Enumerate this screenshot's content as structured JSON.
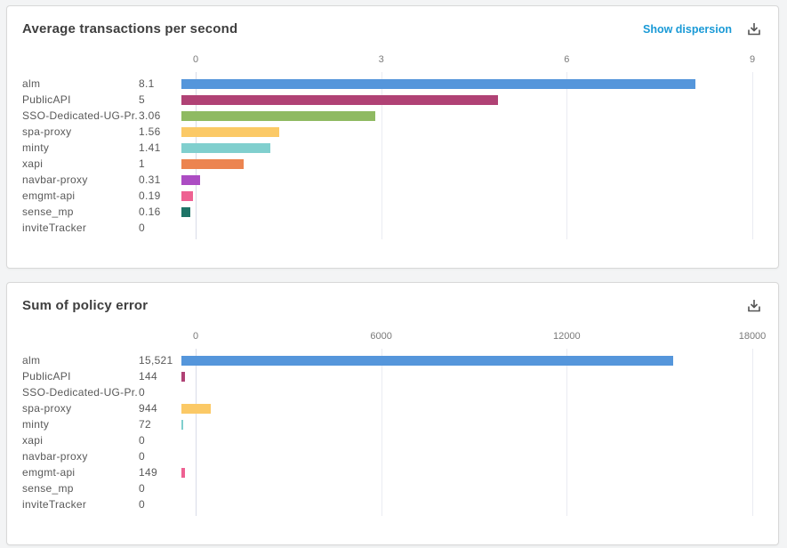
{
  "colors": {
    "link": "#1A9AD6",
    "title_text": "#3E3E3E",
    "label_text": "#595959",
    "axis_text": "#7A7A7A",
    "bar_palette": [
      "#5596DB",
      "#B04275",
      "#8FBA62",
      "#FBC966",
      "#80CFCE",
      "#EC8450",
      "#AC4CC3",
      "#EE6192",
      "#1E7467"
    ]
  },
  "charts": [
    {
      "title": "Average transactions per second",
      "link_label": "Show dispersion",
      "download_icon": "download-icon",
      "axis_max": 9,
      "axis_ticks": [
        "0",
        "3",
        "6",
        "9"
      ],
      "rows": [
        {
          "label": "alm",
          "value": "8.1",
          "num": 8.1,
          "color": "#5596DB"
        },
        {
          "label": "PublicAPI",
          "value": "5",
          "num": 5,
          "color": "#B04275"
        },
        {
          "label": "SSO-Dedicated-UG-Pr...",
          "value": "3.06",
          "num": 3.06,
          "color": "#8FBA62"
        },
        {
          "label": "spa-proxy",
          "value": "1.56",
          "num": 1.56,
          "color": "#FBC966"
        },
        {
          "label": "minty",
          "value": "1.41",
          "num": 1.41,
          "color": "#80CFCE"
        },
        {
          "label": "xapi",
          "value": "1",
          "num": 1,
          "color": "#EC8450"
        },
        {
          "label": "navbar-proxy",
          "value": "0.31",
          "num": 0.31,
          "color": "#AC4CC3"
        },
        {
          "label": "emgmt-api",
          "value": "0.19",
          "num": 0.19,
          "color": "#EE6192"
        },
        {
          "label": "sense_mp",
          "value": "0.16",
          "num": 0.16,
          "color": "#1E7467"
        },
        {
          "label": "inviteTracker",
          "value": "0",
          "num": 0,
          "color": "#5596DB"
        }
      ]
    },
    {
      "title": "Sum of policy error",
      "download_icon": "download-icon",
      "axis_max": 18000,
      "axis_ticks": [
        "0",
        "6000",
        "12000",
        "18000"
      ],
      "rows": [
        {
          "label": "alm",
          "value": "15,521",
          "num": 15521,
          "color": "#5596DB"
        },
        {
          "label": "PublicAPI",
          "value": "144",
          "num": 144,
          "color": "#B04275"
        },
        {
          "label": "SSO-Dedicated-UG-Pr...",
          "value": "0",
          "num": 0,
          "color": "#8FBA62"
        },
        {
          "label": "spa-proxy",
          "value": "944",
          "num": 944,
          "color": "#FBC966"
        },
        {
          "label": "minty",
          "value": "72",
          "num": 72,
          "color": "#80CFCE"
        },
        {
          "label": "xapi",
          "value": "0",
          "num": 0,
          "color": "#EC8450"
        },
        {
          "label": "navbar-proxy",
          "value": "0",
          "num": 0,
          "color": "#AC4CC3"
        },
        {
          "label": "emgmt-api",
          "value": "149",
          "num": 149,
          "color": "#EE6192"
        },
        {
          "label": "sense_mp",
          "value": "0",
          "num": 0,
          "color": "#1E7467"
        },
        {
          "label": "inviteTracker",
          "value": "0",
          "num": 0,
          "color": "#5596DB"
        }
      ]
    }
  ],
  "chart_data": [
    {
      "type": "bar",
      "orientation": "horizontal",
      "title": "Average transactions per second",
      "categories": [
        "alm",
        "PublicAPI",
        "SSO-Dedicated-UG-Pr...",
        "spa-proxy",
        "minty",
        "xapi",
        "navbar-proxy",
        "emgmt-api",
        "sense_mp",
        "inviteTracker"
      ],
      "values": [
        8.1,
        5,
        3.06,
        1.56,
        1.41,
        1,
        0.31,
        0.19,
        0.16,
        0
      ],
      "xlabel": "",
      "ylabel": "",
      "xlim": [
        0,
        9
      ],
      "x_ticks": [
        0,
        3,
        6,
        9
      ],
      "grid": true,
      "legend": false,
      "value_labels_shown": true
    },
    {
      "type": "bar",
      "orientation": "horizontal",
      "title": "Sum of policy error",
      "categories": [
        "alm",
        "PublicAPI",
        "SSO-Dedicated-UG-Pr...",
        "spa-proxy",
        "minty",
        "xapi",
        "navbar-proxy",
        "emgmt-api",
        "sense_mp",
        "inviteTracker"
      ],
      "values": [
        15521,
        144,
        0,
        944,
        72,
        0,
        0,
        149,
        0,
        0
      ],
      "xlabel": "",
      "ylabel": "",
      "xlim": [
        0,
        18000
      ],
      "x_ticks": [
        0,
        6000,
        12000,
        18000
      ],
      "grid": true,
      "legend": false,
      "value_labels_shown": true
    }
  ]
}
